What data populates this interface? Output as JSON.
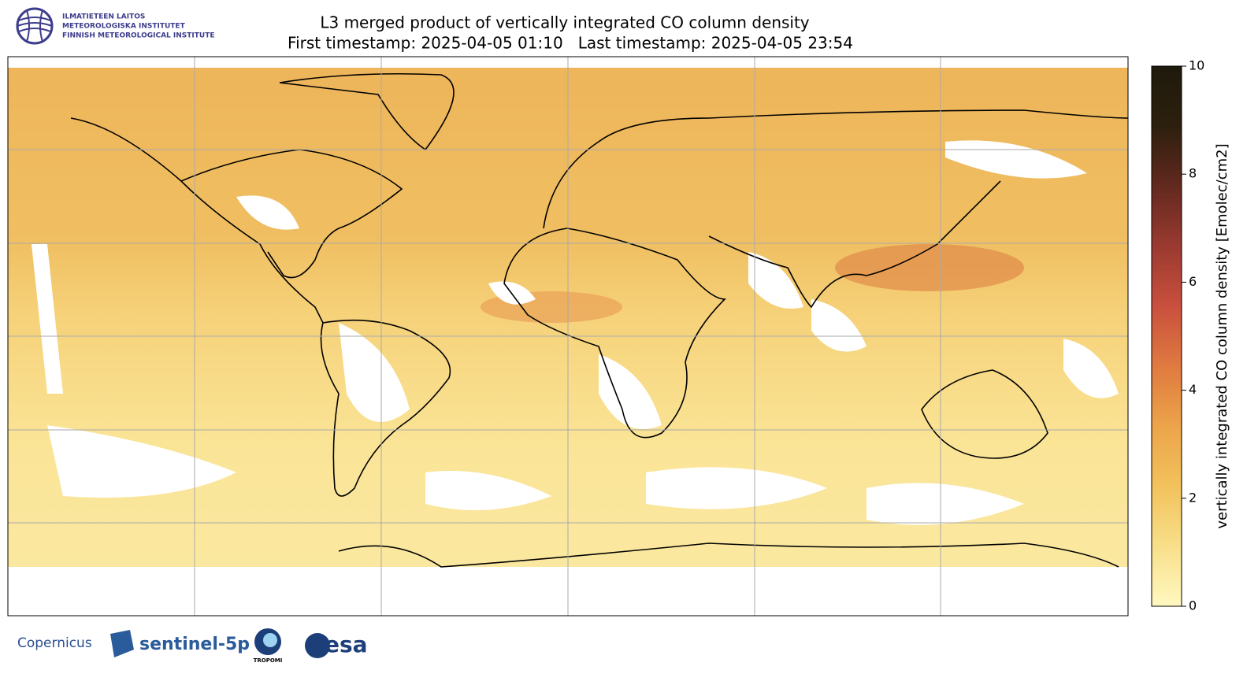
{
  "header": {
    "institute": [
      "ILMATIETEEN LAITOS",
      "METEOROLOGISKA INSTITUTET",
      "FINNISH METEOROLOGICAL INSTITUTE"
    ],
    "title": "L3 merged product of vertically integrated CO column density",
    "subtitle": "First timestamp: 2025-04-05 01:10   Last timestamp: 2025-04-05 23:54"
  },
  "colorbar": {
    "label": "vertically integrated CO column density [Emolec/cm2]",
    "lim": [
      0,
      10
    ],
    "ticks": [
      0,
      2,
      4,
      6,
      8,
      10
    ],
    "colors": [
      "#fff8c0",
      "#f8df8a",
      "#f2c25c",
      "#eca44a",
      "#df7a40",
      "#c9503e",
      "#9a3a30",
      "#63291f",
      "#2c1f0e",
      "#1e1a0c"
    ]
  },
  "footer": {
    "logos": [
      "Copernicus",
      "sentinel-5p",
      "TROPOMI",
      "esa"
    ]
  }
}
